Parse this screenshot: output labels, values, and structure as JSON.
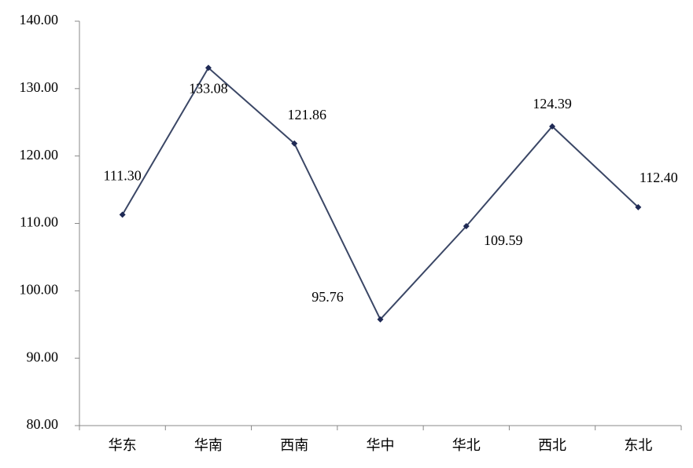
{
  "chart_data": {
    "type": "line",
    "categories": [
      "华东",
      "华南",
      "西南",
      "华中",
      "华北",
      "西北",
      "东北"
    ],
    "series": [
      {
        "name": null,
        "color": "#3b4766",
        "values": [
          111.3,
          133.08,
          121.86,
          95.76,
          109.59,
          124.39,
          112.4
        ],
        "value_labels": [
          "111.30",
          "133.08",
          "121.86",
          "95.76",
          "109.59",
          "124.39",
          "112.40"
        ]
      }
    ],
    "ylim": [
      80,
      140
    ],
    "yticks": [
      {
        "value": 80,
        "label": "80.00"
      },
      {
        "value": 90,
        "label": "90.00"
      },
      {
        "value": 100,
        "label": "100.00"
      },
      {
        "value": 110,
        "label": "110.00"
      },
      {
        "value": 120,
        "label": "120.00"
      },
      {
        "value": 130,
        "label": "130.00"
      },
      {
        "value": 140,
        "label": "140.00"
      }
    ],
    "grid": false
  }
}
